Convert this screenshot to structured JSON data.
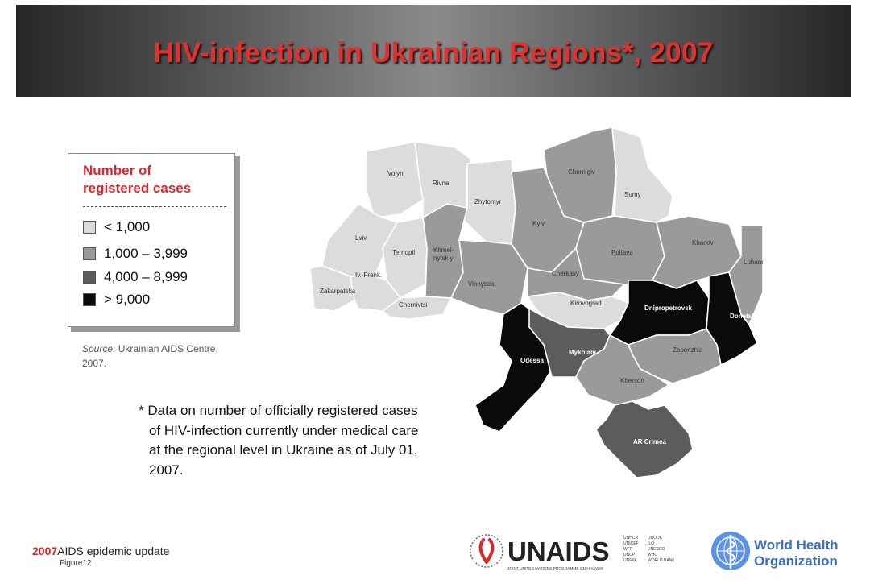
{
  "title": "HIV-infection in Ukrainian Regions*, 2007",
  "legend": {
    "title_line1": "Number of",
    "title_line2": "registered cases",
    "items": [
      {
        "label": "< 1,000",
        "color": "#dcdcdc"
      },
      {
        "label": "1,000 – 3,999",
        "color": "#9a9a9a"
      },
      {
        "label": "4,000 – 8,999",
        "color": "#5c5c5c"
      },
      {
        "label": "> 9,000",
        "color": "#0a0a0a"
      }
    ]
  },
  "source": {
    "prefix": "Source",
    "text": ": Ukrainian AIDS Centre, 2007."
  },
  "footnote": "* Data on number of officially registered cases of HIV-infection currently under medical care at the regional level in Ukraine as of July 01, 2007.",
  "footer": {
    "year": "2007",
    "label": "AIDS epidemic update",
    "figure": "Figure12"
  },
  "logos": {
    "unaids": "UNAIDS",
    "unaids_tagline": "JOINT UNITED NATIONS PROGRAMME ON HIV/AIDS",
    "unaids_cosponsors": [
      "UNHCR",
      "UNICEF",
      "WFP",
      "UNDP",
      "UNFPA",
      "UNODC",
      "ILO",
      "UNESCO",
      "WHO",
      "WORLD BANK"
    ],
    "who_line1": "World Health",
    "who_line2": "Organization"
  },
  "regions": [
    {
      "name": "Volyn",
      "category": 0
    },
    {
      "name": "Rivne",
      "category": 0
    },
    {
      "name": "Zhytomyr",
      "category": 0
    },
    {
      "name": "Chernigiv",
      "category": 1
    },
    {
      "name": "Sumy",
      "category": 0
    },
    {
      "name": "Lviv",
      "category": 0
    },
    {
      "name": "Ternopil",
      "category": 0
    },
    {
      "name": "Khmel-nytskiy",
      "category": 1
    },
    {
      "name": "Kyiv",
      "category": 1
    },
    {
      "name": "Poltava",
      "category": 1
    },
    {
      "name": "Kharkiv",
      "category": 1
    },
    {
      "name": "Luhansk",
      "category": 1
    },
    {
      "name": "Zakarpatska",
      "category": 0
    },
    {
      "name": "Iv.-Frank.",
      "category": 0
    },
    {
      "name": "Chernivtsi",
      "category": 0
    },
    {
      "name": "Vinnytsia",
      "category": 1
    },
    {
      "name": "Cherkasy",
      "category": 1
    },
    {
      "name": "Kirovograd",
      "category": 0
    },
    {
      "name": "Dnipropetrovsk",
      "category": 3
    },
    {
      "name": "Donetsk",
      "category": 3
    },
    {
      "name": "Odessa",
      "category": 3
    },
    {
      "name": "Mykolaiv",
      "category": 2
    },
    {
      "name": "Zaporizhia",
      "category": 1
    },
    {
      "name": "Kherson",
      "category": 1
    },
    {
      "name": "AR Crimea",
      "category": 2
    }
  ]
}
